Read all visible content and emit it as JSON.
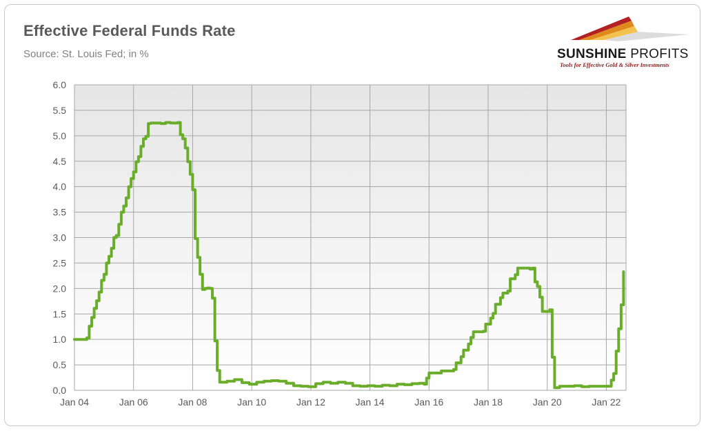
{
  "title": "Effective Federal Funds Rate",
  "subtitle": "Source: St. Louis Fed; in %",
  "logo": {
    "name_bold": "SUNSHINE",
    "name_thin": "PROFITS",
    "tagline": "Tools for Effective Gold & Silver Investments"
  },
  "colors": {
    "line": "#6aad2a",
    "plot_bg_top": "#e6e6e6",
    "plot_bg_bottom": "#ffffff",
    "grid": "#a6a6a6"
  },
  "chart_data": {
    "type": "line",
    "title": "Effective Federal Funds Rate",
    "subtitle": "Source: St. Louis Fed; in %",
    "xlabel": "",
    "ylabel": "",
    "ylim": [
      0,
      6
    ],
    "xlim": [
      "2004-01",
      "2022-09"
    ],
    "grid": true,
    "legend": "none",
    "y_ticks": [
      "0.0",
      "0.5",
      "1.0",
      "1.5",
      "2.0",
      "2.5",
      "3.0",
      "3.5",
      "4.0",
      "4.5",
      "5.0",
      "5.5",
      "6.0"
    ],
    "x_ticks": [
      {
        "label": "Jan 04",
        "date": "2004-01"
      },
      {
        "label": "Jan 06",
        "date": "2006-01"
      },
      {
        "label": "Jan 08",
        "date": "2008-01"
      },
      {
        "label": "Jan 10",
        "date": "2010-01"
      },
      {
        "label": "Jan 12",
        "date": "2012-01"
      },
      {
        "label": "Jan 14",
        "date": "2014-01"
      },
      {
        "label": "Jan 16",
        "date": "2016-01"
      },
      {
        "label": "Jan 18",
        "date": "2018-01"
      },
      {
        "label": "Jan 20",
        "date": "2020-01"
      },
      {
        "label": "Jan 22",
        "date": "2022-01"
      }
    ],
    "series": [
      {
        "points": [
          [
            "2004-01",
            1.0
          ],
          [
            "2004-06",
            1.03
          ],
          [
            "2004-07",
            1.26
          ],
          [
            "2004-08",
            1.43
          ],
          [
            "2004-09",
            1.61
          ],
          [
            "2004-10",
            1.76
          ],
          [
            "2004-11",
            1.93
          ],
          [
            "2004-12",
            2.16
          ],
          [
            "2005-01",
            2.28
          ],
          [
            "2005-02",
            2.5
          ],
          [
            "2005-03",
            2.63
          ],
          [
            "2005-04",
            2.79
          ],
          [
            "2005-05",
            3.0
          ],
          [
            "2005-06",
            3.04
          ],
          [
            "2005-07",
            3.26
          ],
          [
            "2005-08",
            3.5
          ],
          [
            "2005-09",
            3.62
          ],
          [
            "2005-10",
            3.78
          ],
          [
            "2005-11",
            4.0
          ],
          [
            "2005-12",
            4.16
          ],
          [
            "2006-01",
            4.29
          ],
          [
            "2006-02",
            4.49
          ],
          [
            "2006-03",
            4.59
          ],
          [
            "2006-04",
            4.79
          ],
          [
            "2006-05",
            4.94
          ],
          [
            "2006-06",
            4.99
          ],
          [
            "2006-07",
            5.24
          ],
          [
            "2006-08",
            5.25
          ],
          [
            "2006-10",
            5.25
          ],
          [
            "2006-12",
            5.24
          ],
          [
            "2007-02",
            5.26
          ],
          [
            "2007-04",
            5.25
          ],
          [
            "2007-06",
            5.25
          ],
          [
            "2007-07",
            5.26
          ],
          [
            "2007-08",
            5.02
          ],
          [
            "2007-09",
            4.94
          ],
          [
            "2007-10",
            4.76
          ],
          [
            "2007-11",
            4.49
          ],
          [
            "2007-12",
            4.24
          ],
          [
            "2008-01",
            3.94
          ],
          [
            "2008-02",
            2.98
          ],
          [
            "2008-03",
            2.61
          ],
          [
            "2008-04",
            2.28
          ],
          [
            "2008-05",
            1.98
          ],
          [
            "2008-06",
            2.0
          ],
          [
            "2008-07",
            2.01
          ],
          [
            "2008-08",
            2.0
          ],
          [
            "2008-09",
            1.81
          ],
          [
            "2008-10",
            0.97
          ],
          [
            "2008-11",
            0.39
          ],
          [
            "2008-12",
            0.16
          ],
          [
            "2009-03",
            0.18
          ],
          [
            "2009-06",
            0.21
          ],
          [
            "2009-09",
            0.15
          ],
          [
            "2009-12",
            0.12
          ],
          [
            "2010-03",
            0.16
          ],
          [
            "2010-06",
            0.18
          ],
          [
            "2010-09",
            0.19
          ],
          [
            "2010-12",
            0.18
          ],
          [
            "2011-03",
            0.14
          ],
          [
            "2011-06",
            0.09
          ],
          [
            "2011-09",
            0.08
          ],
          [
            "2011-12",
            0.07
          ],
          [
            "2012-03",
            0.13
          ],
          [
            "2012-06",
            0.16
          ],
          [
            "2012-09",
            0.14
          ],
          [
            "2012-12",
            0.16
          ],
          [
            "2013-03",
            0.14
          ],
          [
            "2013-06",
            0.09
          ],
          [
            "2013-09",
            0.08
          ],
          [
            "2013-12",
            0.09
          ],
          [
            "2014-03",
            0.08
          ],
          [
            "2014-06",
            0.1
          ],
          [
            "2014-09",
            0.09
          ],
          [
            "2014-12",
            0.12
          ],
          [
            "2015-03",
            0.11
          ],
          [
            "2015-06",
            0.13
          ],
          [
            "2015-09",
            0.14
          ],
          [
            "2015-11",
            0.12
          ],
          [
            "2015-12",
            0.24
          ],
          [
            "2016-01",
            0.34
          ],
          [
            "2016-06",
            0.38
          ],
          [
            "2016-11",
            0.41
          ],
          [
            "2016-12",
            0.54
          ],
          [
            "2017-02",
            0.66
          ],
          [
            "2017-03",
            0.79
          ],
          [
            "2017-05",
            0.91
          ],
          [
            "2017-06",
            1.04
          ],
          [
            "2017-07",
            1.15
          ],
          [
            "2017-11",
            1.16
          ],
          [
            "2017-12",
            1.3
          ],
          [
            "2018-02",
            1.42
          ],
          [
            "2018-03",
            1.51
          ],
          [
            "2018-04",
            1.69
          ],
          [
            "2018-06",
            1.82
          ],
          [
            "2018-07",
            1.91
          ],
          [
            "2018-09",
            1.95
          ],
          [
            "2018-10",
            2.19
          ],
          [
            "2018-12",
            2.27
          ],
          [
            "2019-01",
            2.4
          ],
          [
            "2019-06",
            2.38
          ],
          [
            "2019-07",
            2.4
          ],
          [
            "2019-08",
            2.13
          ],
          [
            "2019-09",
            2.04
          ],
          [
            "2019-10",
            1.83
          ],
          [
            "2019-11",
            1.55
          ],
          [
            "2020-01",
            1.55
          ],
          [
            "2020-02",
            1.58
          ],
          [
            "2020-03",
            0.65
          ],
          [
            "2020-04",
            0.05
          ],
          [
            "2020-06",
            0.08
          ],
          [
            "2020-12",
            0.09
          ],
          [
            "2021-03",
            0.07
          ],
          [
            "2021-06",
            0.08
          ],
          [
            "2021-09",
            0.08
          ],
          [
            "2021-12",
            0.08
          ],
          [
            "2022-02",
            0.08
          ],
          [
            "2022-03",
            0.2
          ],
          [
            "2022-04",
            0.33
          ],
          [
            "2022-05",
            0.77
          ],
          [
            "2022-06",
            1.21
          ],
          [
            "2022-07",
            1.68
          ],
          [
            "2022-08",
            2.33
          ]
        ]
      }
    ]
  }
}
